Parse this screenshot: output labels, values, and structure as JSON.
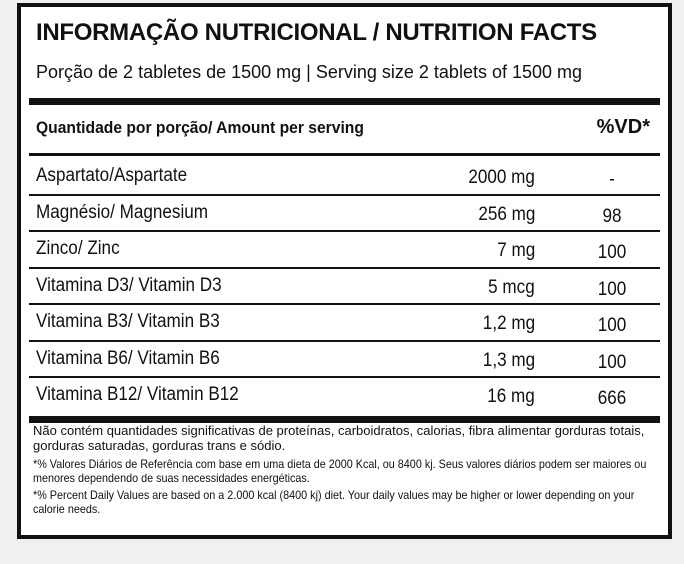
{
  "label": {
    "title": "INFORMAÇÃO NUTRICIONAL / NUTRITION FACTS",
    "serving_size": "Porção de 2 tabletes de 1500 mg | Serving size 2 tablets of 1500 mg",
    "header_quantity": "Quantidade por porção/ Amount per serving",
    "header_dv": "%VD*",
    "rows": [
      {
        "name": "Aspartato/Aspartate",
        "amount": "2000 mg",
        "dv": "-"
      },
      {
        "name": "Magnésio/ Magnesium",
        "amount": "256 mg",
        "dv": "98"
      },
      {
        "name": "Zinco/ Zinc",
        "amount": "7 mg",
        "dv": "100"
      },
      {
        "name": "Vitamina D3/ Vitamin D3",
        "amount": "5 mcg",
        "dv": "100"
      },
      {
        "name": "Vitamina B3/ Vitamin B3",
        "amount": "1,2 mg",
        "dv": "100"
      },
      {
        "name": "Vitamina B6/ Vitamin B6",
        "amount": "1,3 mg",
        "dv": "100"
      },
      {
        "name": "Vitamina B12/ Vitamin B12",
        "amount": "16 mg",
        "dv": "666"
      }
    ],
    "footnote_1": "Não contém quantidades significativas de proteínas, carboidratos, calorias, fibra alimentar gorduras totais, gorduras saturadas, gorduras trans e sódio.",
    "footnote_2": "*% Valores Diários de Referência com base em uma dieta de 2000 Kcal, ou 8400 kj. Seus valores diários podem ser maiores ou menores dependendo de suas necessidades energéticas.",
    "footnote_3": "*% Percent Daily Values are based on a 2.000 kcal (8400 kj) diet. Your daily values may be higher or lower depending on your calorie needs."
  }
}
